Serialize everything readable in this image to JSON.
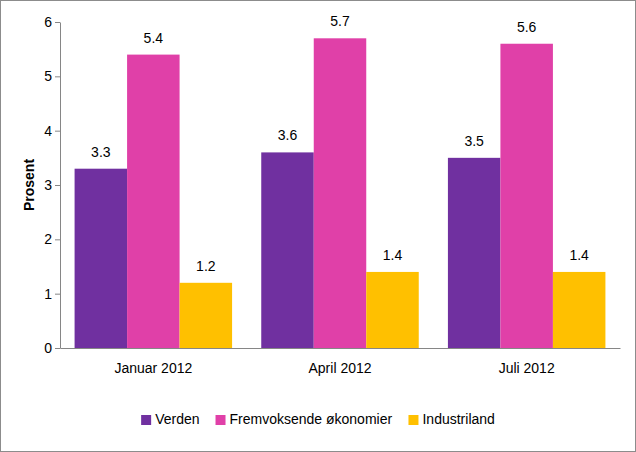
{
  "chart_data": {
    "type": "bar",
    "y_label": "Prosent",
    "categories": [
      "Januar 2012",
      "April 2012",
      "Juli 2012"
    ],
    "series": [
      {
        "name": "Verden",
        "color": "#7030a0",
        "values": [
          3.3,
          3.6,
          3.5
        ]
      },
      {
        "name": "Fremvoksende økonomier",
        "color": "#e040a8",
        "values": [
          5.4,
          5.7,
          5.6
        ]
      },
      {
        "name": "Industriland",
        "color": "#ffc000",
        "values": [
          1.2,
          1.4,
          1.4
        ]
      }
    ],
    "ylim": [
      0,
      6
    ],
    "yticks": [
      0,
      1,
      2,
      3,
      4,
      5,
      6
    ],
    "grid": false,
    "data_labels": true,
    "legend": "bottom"
  }
}
